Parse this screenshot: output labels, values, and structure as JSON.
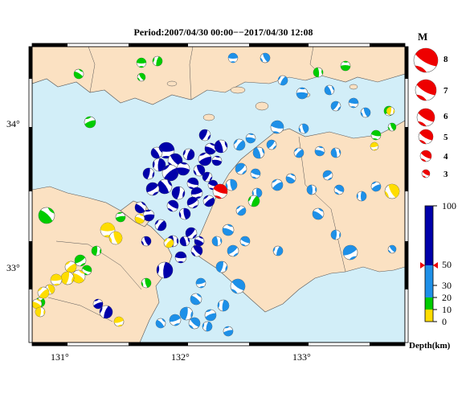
{
  "title": "Period:2007/04/30 00:00−−2017/04/30 12:08",
  "lat_labels": [
    "34°",
    "33°"
  ],
  "lon_labels": [
    "131°",
    "132°",
    "133°"
  ],
  "magnitude_legend": {
    "title": "M",
    "entries": [
      "8",
      "7",
      "6",
      "5",
      "4",
      "3"
    ]
  },
  "depth_scale": {
    "title": "Depth(km)",
    "ticks": [
      "100",
      "50",
      "30",
      "20",
      "10",
      "0"
    ],
    "colors": {
      "deep": "#0000aa",
      "mid": "#1e90e8",
      "shallow": "#00cc00",
      "surface": "#ffdd00"
    }
  },
  "colors": {
    "sea": "#d2eef8",
    "land": "#fbe1c2",
    "mainshock": "#ee0000"
  }
}
